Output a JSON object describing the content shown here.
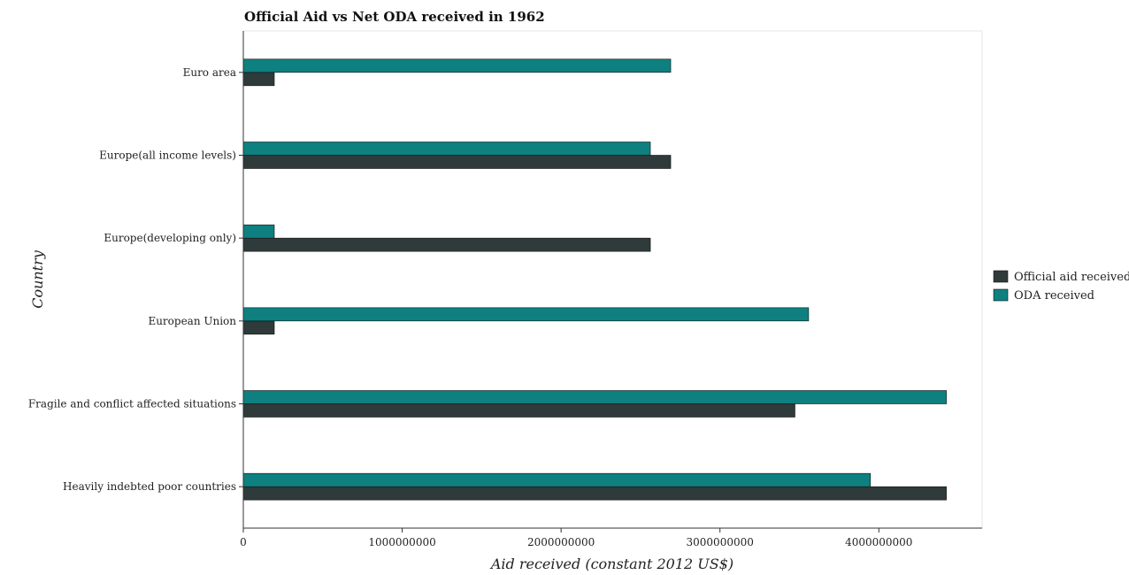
{
  "chart_data": {
    "type": "bar",
    "orientation": "horizontal",
    "title": "Official Aid vs Net ODA received in 1962",
    "xlabel": "Aid received (constant 2012 US$)",
    "ylabel": "Country",
    "categories": [
      "Euro area",
      "Europe(all income levels)",
      "Europe(developing only)",
      "European Union",
      "Fragile and conflict affected situations",
      "Heavily indebted poor countries"
    ],
    "series": [
      {
        "name": "Official aid received",
        "color": "#2f3a3a",
        "values": [
          195000000,
          2690000000,
          2562000000,
          195000000,
          3472000000,
          4425000000
        ]
      },
      {
        "name": "ODA received",
        "color": "#0e8080",
        "values": [
          2690000000,
          2562000000,
          195000000,
          3558000000,
          4425000000,
          3947000000
        ]
      }
    ],
    "xlim": [
      0,
      4650000000
    ],
    "xticks": [
      0,
      1000000000,
      2000000000,
      3000000000,
      4000000000
    ],
    "xtick_labels": [
      "0",
      "1000000000",
      "2000000000",
      "3000000000",
      "4000000000"
    ],
    "grid": false,
    "legend_position": "right"
  }
}
